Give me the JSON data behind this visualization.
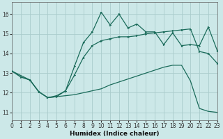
{
  "xlabel": "Humidex (Indice chaleur)",
  "bg_color": "#cce8e8",
  "grid_color": "#aacccc",
  "line_color": "#1a6b5a",
  "x_ticks": [
    0,
    1,
    2,
    3,
    4,
    5,
    6,
    7,
    8,
    9,
    10,
    11,
    12,
    13,
    14,
    15,
    16,
    17,
    18,
    19,
    20,
    21,
    22,
    23
  ],
  "y_ticks": [
    11,
    12,
    13,
    14,
    15,
    16
  ],
  "xlim": [
    0,
    23
  ],
  "ylim": [
    10.6,
    16.6
  ],
  "series": [
    {
      "x": [
        0,
        1,
        2,
        3,
        4,
        5,
        6,
        7,
        8,
        9,
        10,
        11,
        12,
        13,
        14,
        15,
        16,
        17,
        18,
        19,
        20,
        21,
        22,
        23
      ],
      "y": [
        13.1,
        12.8,
        12.65,
        12.05,
        11.75,
        11.8,
        11.85,
        11.9,
        12.0,
        12.1,
        12.2,
        12.4,
        12.55,
        12.7,
        12.85,
        13.0,
        13.15,
        13.3,
        13.4,
        13.4,
        12.6,
        11.2,
        11.05,
        11.0
      ],
      "marker": false,
      "lw": 0.9
    },
    {
      "x": [
        0,
        1,
        2,
        3,
        4,
        5,
        6,
        7,
        8,
        9,
        10,
        11,
        12,
        13,
        14,
        15,
        16,
        17,
        18,
        19,
        20,
        21,
        22,
        23
      ],
      "y": [
        13.1,
        12.8,
        12.65,
        12.05,
        11.75,
        11.8,
        12.1,
        12.9,
        13.8,
        14.4,
        14.65,
        14.75,
        14.85,
        14.85,
        14.9,
        15.0,
        15.05,
        15.1,
        15.15,
        15.2,
        15.25,
        14.1,
        14.0,
        13.5
      ],
      "marker": true,
      "lw": 0.9
    },
    {
      "x": [
        0,
        2,
        3,
        4,
        5,
        6,
        7,
        8,
        9,
        10,
        11,
        12,
        13,
        14,
        15,
        16,
        17,
        18,
        19,
        20,
        21,
        22,
        23
      ],
      "y": [
        13.1,
        12.65,
        12.05,
        11.75,
        11.85,
        12.1,
        13.35,
        14.55,
        15.1,
        16.1,
        15.45,
        16.0,
        15.3,
        15.5,
        15.1,
        15.1,
        14.45,
        15.05,
        14.4,
        14.45,
        14.4,
        15.35,
        14.15
      ],
      "marker": true,
      "lw": 0.9
    }
  ]
}
